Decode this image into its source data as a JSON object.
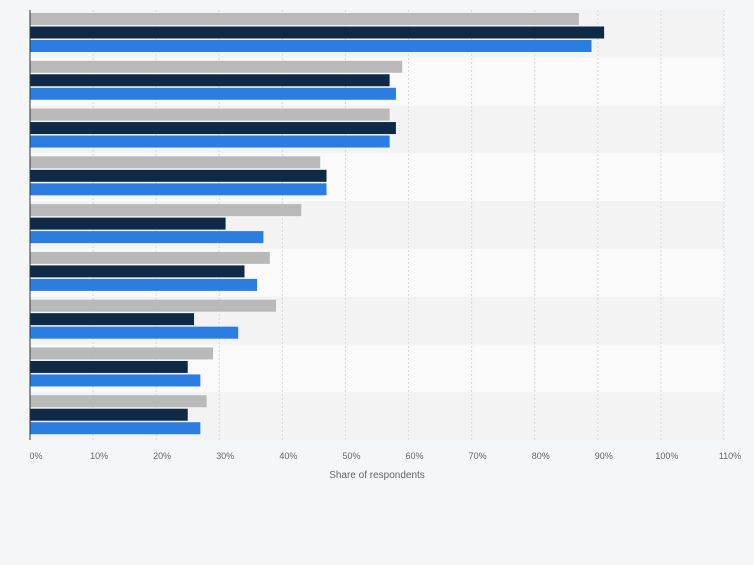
{
  "chart_data": {
    "type": "bar",
    "orientation": "horizontal",
    "categories": [
      "",
      "",
      "",
      "",
      "",
      "",
      "",
      "",
      ""
    ],
    "series": [
      {
        "values": [
          87,
          59,
          57,
          46,
          43,
          38,
          39,
          29,
          28
        ],
        "color": "#b9b9b9"
      },
      {
        "values": [
          91,
          57,
          58,
          47,
          31,
          34,
          26,
          25,
          25
        ],
        "color": "#0f2a47"
      },
      {
        "values": [
          89,
          58,
          57,
          47,
          37,
          36,
          33,
          27,
          27
        ],
        "color": "#2b7de1"
      }
    ],
    "xlabel": "Share of respondents",
    "xlim": [
      0,
      110
    ],
    "x_ticks": [
      "0%",
      "10%",
      "20%",
      "30%",
      "40%",
      "50%",
      "60%",
      "70%",
      "80%",
      "90%",
      "100%",
      "110%"
    ],
    "grid": true,
    "legend": "none"
  }
}
